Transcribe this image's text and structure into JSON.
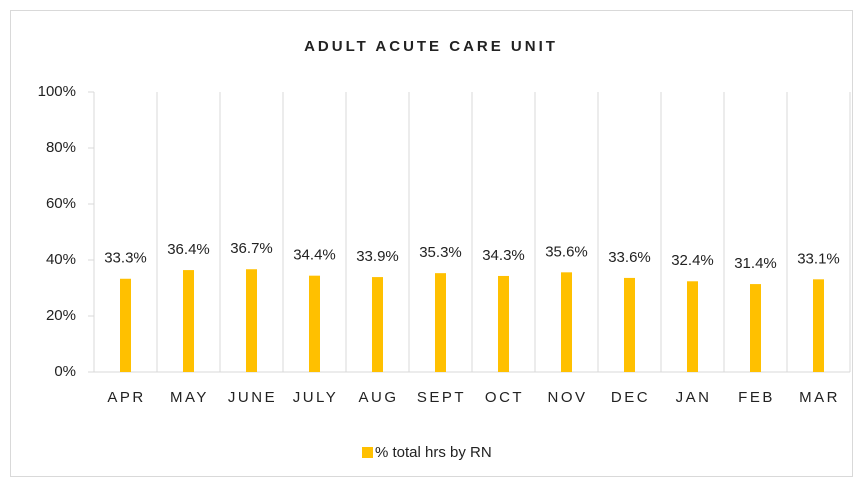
{
  "chart_data": {
    "type": "bar",
    "title": "ADULT ACUTE CARE UNIT",
    "categories": [
      "APR",
      "MAY",
      "JUNE",
      "JULY",
      "AUG",
      "SEPT",
      "OCT",
      "NOV",
      "DEC",
      "JAN",
      "FEB",
      "MAR"
    ],
    "series": [
      {
        "name": "% total hrs by RN",
        "color": "#ffc000",
        "values": [
          33.3,
          36.4,
          36.7,
          34.4,
          33.9,
          35.3,
          34.3,
          35.6,
          33.6,
          32.4,
          31.4,
          33.1
        ],
        "value_labels": [
          "33.3%",
          "36.4%",
          "36.7%",
          "34.4%",
          "33.9%",
          "35.3%",
          "34.3%",
          "35.6%",
          "33.6%",
          "32.4%",
          "31.4%",
          "33.1%"
        ]
      }
    ],
    "ylim": [
      0,
      100
    ],
    "yticks": [
      {
        "value": 0,
        "label": "0%"
      },
      {
        "value": 20,
        "label": "20%"
      },
      {
        "value": 40,
        "label": "40%"
      },
      {
        "value": 60,
        "label": "60%"
      },
      {
        "value": 80,
        "label": "80%"
      },
      {
        "value": 100,
        "label": "100%"
      }
    ],
    "grid": true,
    "legend": "bottom"
  }
}
